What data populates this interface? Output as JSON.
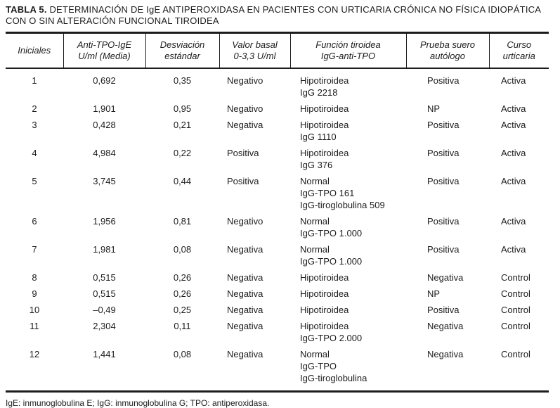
{
  "title": {
    "label": "TABLA 5.",
    "text": " DETERMINACIÓN DE IgE ANTIPEROXIDASA EN PACIENTES CON URTICARIA CRÓNICA NO FÍSICA IDIOPÁTICA CON O SIN ALTERACIÓN FUNCIONAL TIROIDEA"
  },
  "table": {
    "columns": [
      {
        "key": "iniciales",
        "label": "Iniciales"
      },
      {
        "key": "anti_tpo_ige",
        "label": "Anti-TPO-IgE\nU/ml (Media)"
      },
      {
        "key": "desviacion_estandar",
        "label": "Desviación\nestándar"
      },
      {
        "key": "valor_basal",
        "label": "Valor basal\n0-3,3 U/ml"
      },
      {
        "key": "funcion_tiroidea",
        "label": "Función tiroidea\nIgG-anti-TPO"
      },
      {
        "key": "prueba_suero_autologo",
        "label": "Prueba suero\nautólogo"
      },
      {
        "key": "curso_urticaria",
        "label": "Curso\nurticaria"
      }
    ],
    "rows": [
      {
        "iniciales": "1",
        "anti_tpo_ige": "0,692",
        "desviacion_estandar": "0,35",
        "valor_basal": "Negativo",
        "funcion_tiroidea": "Hipotiroidea\nIgG 2218",
        "prueba_suero_autologo": "Positiva",
        "curso_urticaria": "Activa"
      },
      {
        "iniciales": "2",
        "anti_tpo_ige": "1,901",
        "desviacion_estandar": "0,95",
        "valor_basal": "Negativo",
        "funcion_tiroidea": "Hipotiroidea",
        "prueba_suero_autologo": "NP",
        "curso_urticaria": "Activa"
      },
      {
        "iniciales": "3",
        "anti_tpo_ige": "0,428",
        "desviacion_estandar": "0,21",
        "valor_basal": "Negativa",
        "funcion_tiroidea": "Hipotiroidea\nIgG 1110",
        "prueba_suero_autologo": "Positiva",
        "curso_urticaria": "Activa"
      },
      {
        "iniciales": "4",
        "anti_tpo_ige": "4,984",
        "desviacion_estandar": "0,22",
        "valor_basal": "Positiva",
        "funcion_tiroidea": "Hipotiroidea\nIgG 376",
        "prueba_suero_autologo": "Positiva",
        "curso_urticaria": "Activa"
      },
      {
        "iniciales": "5",
        "anti_tpo_ige": "3,745",
        "desviacion_estandar": "0,44",
        "valor_basal": "Positiva",
        "funcion_tiroidea": "Normal\nIgG-TPO 161\nIgG-tiroglobulina 509",
        "prueba_suero_autologo": "Positiva",
        "curso_urticaria": "Activa"
      },
      {
        "iniciales": "6",
        "anti_tpo_ige": "1,956",
        "desviacion_estandar": "0,81",
        "valor_basal": "Negativo",
        "funcion_tiroidea": "Normal\nIgG-TPO 1.000",
        "prueba_suero_autologo": "Positiva",
        "curso_urticaria": "Activa"
      },
      {
        "iniciales": "7",
        "anti_tpo_ige": "1,981",
        "desviacion_estandar": "0,08",
        "valor_basal": "Negativa",
        "funcion_tiroidea": "Normal\nIgG-TPO 1.000",
        "prueba_suero_autologo": "Positiva",
        "curso_urticaria": "Activa"
      },
      {
        "iniciales": "8",
        "anti_tpo_ige": "0,515",
        "desviacion_estandar": "0,26",
        "valor_basal": "Negativa",
        "funcion_tiroidea": "Hipotiroidea",
        "prueba_suero_autologo": "Negativa",
        "curso_urticaria": "Control"
      },
      {
        "iniciales": "9",
        "anti_tpo_ige": "0,515",
        "desviacion_estandar": "0,26",
        "valor_basal": "Negativa",
        "funcion_tiroidea": "Hipotiroidea",
        "prueba_suero_autologo": "NP",
        "curso_urticaria": "Control"
      },
      {
        "iniciales": "10",
        "anti_tpo_ige": "–0,49",
        "desviacion_estandar": "0,25",
        "valor_basal": "Negativa",
        "funcion_tiroidea": "Hipotiroidea",
        "prueba_suero_autologo": "Positiva",
        "curso_urticaria": "Control"
      },
      {
        "iniciales": "11",
        "anti_tpo_ige": "2,304",
        "desviacion_estandar": "0,11",
        "valor_basal": "Negativa",
        "funcion_tiroidea": "Hipotiroidea\nIgG-TPO 2.000",
        "prueba_suero_autologo": "Negativa",
        "curso_urticaria": "Control"
      },
      {
        "iniciales": "12",
        "anti_tpo_ige": "1,441",
        "desviacion_estandar": "0,08",
        "valor_basal": "Negativa",
        "funcion_tiroidea": "Normal\nIgG-TPO\nIgG-tiroglobulina",
        "prueba_suero_autologo": "Negativa",
        "curso_urticaria": "Control"
      }
    ]
  },
  "footnote": "IgE: inmunoglobulina E; IgG: inmunoglobulina G; TPO: antiperoxidasa."
}
